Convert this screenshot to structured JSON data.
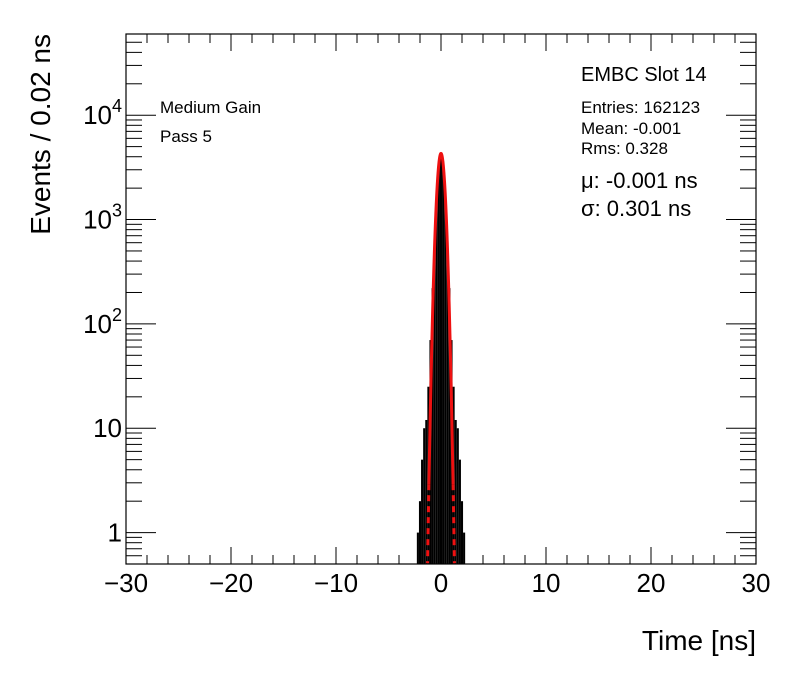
{
  "chart_data": {
    "type": "histogram",
    "title": "EMBC Slot 14",
    "xlabel": "Time [ns]",
    "ylabel": "Events / 0.02 ns",
    "xlim": [
      -30,
      30
    ],
    "ylim": [
      0.5,
      60000
    ],
    "yscale": "log",
    "x_ticks": [
      "−30",
      "−20",
      "−10",
      "0",
      "10",
      "20",
      "30"
    ],
    "y_ticks": [
      {
        "value": 1,
        "label": "1"
      },
      {
        "value": 10,
        "label": "10"
      },
      {
        "value": 100,
        "label": "10",
        "sup": "2"
      },
      {
        "value": 1000,
        "label": "10",
        "sup": "3"
      },
      {
        "value": 10000,
        "label": "10",
        "sup": "4"
      }
    ],
    "annotations": {
      "gain": "Medium Gain",
      "pass": "Pass 5"
    },
    "stats": {
      "entries": "Entries: 162123",
      "mean": "Mean: -0.001",
      "rms": "Rms: 0.328"
    },
    "fit": {
      "mu_label": "μ: -0.001 ns",
      "sigma_label": "σ: 0.301 ns",
      "mu": -0.001,
      "sigma": 0.301,
      "peak": 4300,
      "color": "#ee1111"
    },
    "histogram": {
      "color": "#000000",
      "x": [
        -2.2,
        -2.0,
        -1.8,
        -1.6,
        -1.4,
        -1.2,
        -1.0,
        -0.8,
        -0.6,
        -0.4,
        -0.2,
        0.0,
        0.2,
        0.4,
        0.6,
        0.8,
        1.0,
        1.2,
        1.4,
        1.6,
        1.8,
        2.0,
        2.2
      ],
      "values": [
        1,
        2,
        5,
        10,
        12,
        25,
        70,
        220,
        700,
        1800,
        3600,
        4300,
        3600,
        1800,
        700,
        220,
        70,
        25,
        12,
        10,
        5,
        2,
        1
      ]
    }
  }
}
